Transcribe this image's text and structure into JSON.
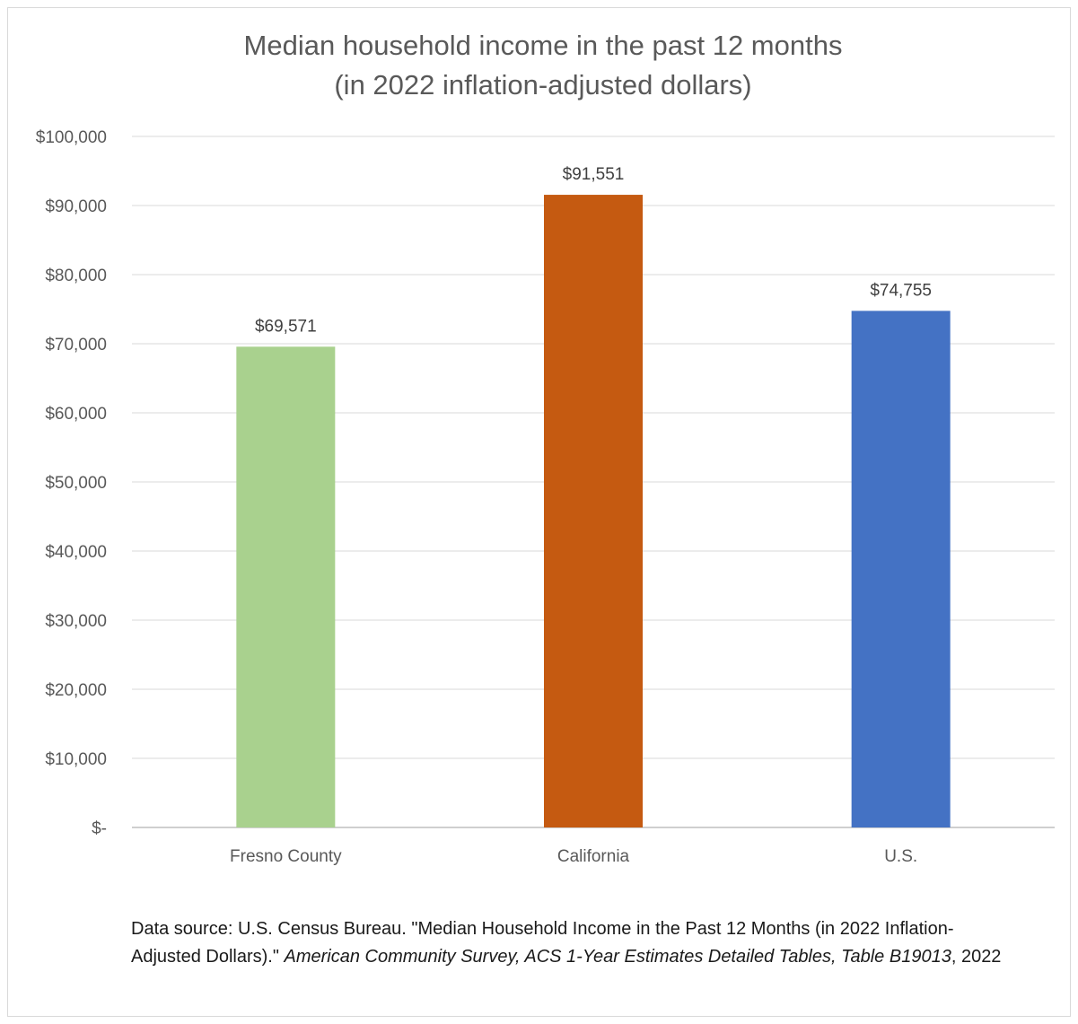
{
  "chart_data": {
    "type": "bar",
    "title": [
      "Median household income in the past 12 months",
      "(in 2022 inflation-adjusted dollars)"
    ],
    "categories": [
      "Fresno County",
      "California",
      "U.S."
    ],
    "values": [
      69571,
      91551,
      74755
    ],
    "data_labels": [
      "$69,571",
      "$91,551",
      "$74,755"
    ],
    "colors": [
      "#a9d18e",
      "#c55a11",
      "#4472c4"
    ],
    "ylim": [
      0,
      100000
    ],
    "yticks": [
      0,
      10000,
      20000,
      30000,
      40000,
      50000,
      60000,
      70000,
      80000,
      90000,
      100000
    ],
    "ytick_labels": [
      "$-",
      "$10,000",
      "$20,000",
      "$30,000",
      "$40,000",
      "$50,000",
      "$60,000",
      "$70,000",
      "$80,000",
      "$90,000",
      "$100,000"
    ],
    "grid": true,
    "legend": "none"
  },
  "source": {
    "prefix": "Data source: U.S. Census Bureau. \"Median Household Income in the Past 12 Months (in 2022 Inflation-Adjusted Dollars).\" ",
    "italic": "American Community Survey, ACS 1-Year Estimates Detailed Tables, Table B19013",
    "suffix": ", 2022"
  }
}
